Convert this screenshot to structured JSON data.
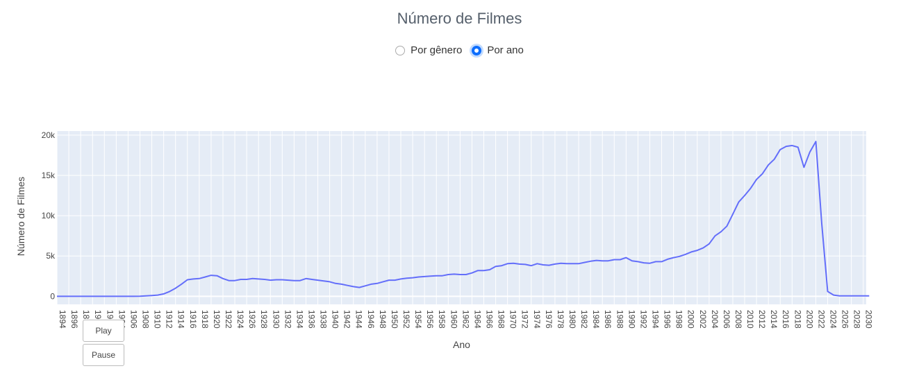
{
  "header": {
    "title": "Número de Filmes"
  },
  "view_toggle": {
    "options": [
      {
        "label": "Por gênero",
        "selected": false
      },
      {
        "label": "Por ano",
        "selected": true
      }
    ]
  },
  "controls": {
    "play_label": "Play",
    "pause_label": "Pause"
  },
  "colors": {
    "line": "#636efa",
    "plot_bg": "#e5ecf6",
    "grid": "#ffffff",
    "radio_accent": "#0d6efd"
  },
  "chart_data": {
    "type": "line",
    "title": "",
    "xlabel": "Ano",
    "ylabel": "Número de Filmes",
    "xlim": [
      1894,
      2030.5
    ],
    "ylim": [
      -1000,
      20500
    ],
    "x_tick_step": 2,
    "yticks": [
      0,
      5000,
      10000,
      15000,
      20000
    ],
    "ytick_labels": [
      "0",
      "5k",
      "10k",
      "15k",
      "20k"
    ],
    "grid": true,
    "series": [
      {
        "x": [
          1894,
          1895,
          1896,
          1897,
          1898,
          1899,
          1900,
          1901,
          1902,
          1903,
          1904,
          1905,
          1906,
          1907,
          1908,
          1909,
          1910,
          1911,
          1912,
          1913,
          1914,
          1915,
          1916,
          1917,
          1918,
          1919,
          1920,
          1921,
          1922,
          1923,
          1924,
          1925,
          1926,
          1927,
          1928,
          1929,
          1930,
          1931,
          1932,
          1933,
          1934,
          1935,
          1936,
          1937,
          1938,
          1939,
          1940,
          1941,
          1942,
          1943,
          1944,
          1945,
          1946,
          1947,
          1948,
          1949,
          1950,
          1951,
          1952,
          1953,
          1954,
          1955,
          1956,
          1957,
          1958,
          1959,
          1960,
          1961,
          1962,
          1963,
          1964,
          1965,
          1966,
          1967,
          1968,
          1969,
          1970,
          1971,
          1972,
          1973,
          1974,
          1975,
          1976,
          1977,
          1978,
          1979,
          1980,
          1981,
          1982,
          1983,
          1984,
          1985,
          1986,
          1987,
          1988,
          1989,
          1990,
          1991,
          1992,
          1993,
          1994,
          1995,
          1996,
          1997,
          1998,
          1999,
          2000,
          2001,
          2002,
          2003,
          2004,
          2005,
          2006,
          2007,
          2008,
          2009,
          2010,
          2011,
          2012,
          2013,
          2014,
          2015,
          2016,
          2017,
          2018,
          2019,
          2020,
          2021,
          2022,
          2023,
          2024,
          2025,
          2026,
          2027,
          2028,
          2029,
          2030,
          2031
        ],
        "values": [
          0,
          0,
          0,
          0,
          0,
          0,
          0,
          0,
          0,
          0,
          0,
          0,
          0,
          0,
          10,
          50,
          100,
          150,
          300,
          600,
          1000,
          1500,
          2050,
          2150,
          2200,
          2400,
          2600,
          2550,
          2200,
          1950,
          1950,
          2100,
          2100,
          2200,
          2150,
          2100,
          2000,
          2050,
          2050,
          2000,
          1950,
          1950,
          2200,
          2100,
          2000,
          1900,
          1800,
          1600,
          1500,
          1350,
          1200,
          1100,
          1300,
          1500,
          1600,
          1800,
          2000,
          2000,
          2150,
          2250,
          2300,
          2400,
          2450,
          2500,
          2550,
          2550,
          2700,
          2750,
          2700,
          2700,
          2900,
          3200,
          3200,
          3300,
          3700,
          3800,
          4050,
          4100,
          4000,
          3950,
          3800,
          4050,
          3900,
          3850,
          4000,
          4100,
          4050,
          4050,
          4050,
          4200,
          4350,
          4450,
          4400,
          4400,
          4550,
          4550,
          4800,
          4400,
          4300,
          4150,
          4100,
          4300,
          4300,
          4600,
          4800,
          4950,
          5200,
          5500,
          5700,
          6000,
          6500,
          7500,
          8000,
          8700,
          10200,
          11700,
          12500,
          13400,
          14500,
          15200,
          16300,
          17000,
          18200,
          18600,
          18700,
          18500,
          16000,
          17900,
          19200,
          9000,
          600,
          150,
          50,
          50,
          50,
          50,
          50,
          50
        ]
      }
    ]
  }
}
